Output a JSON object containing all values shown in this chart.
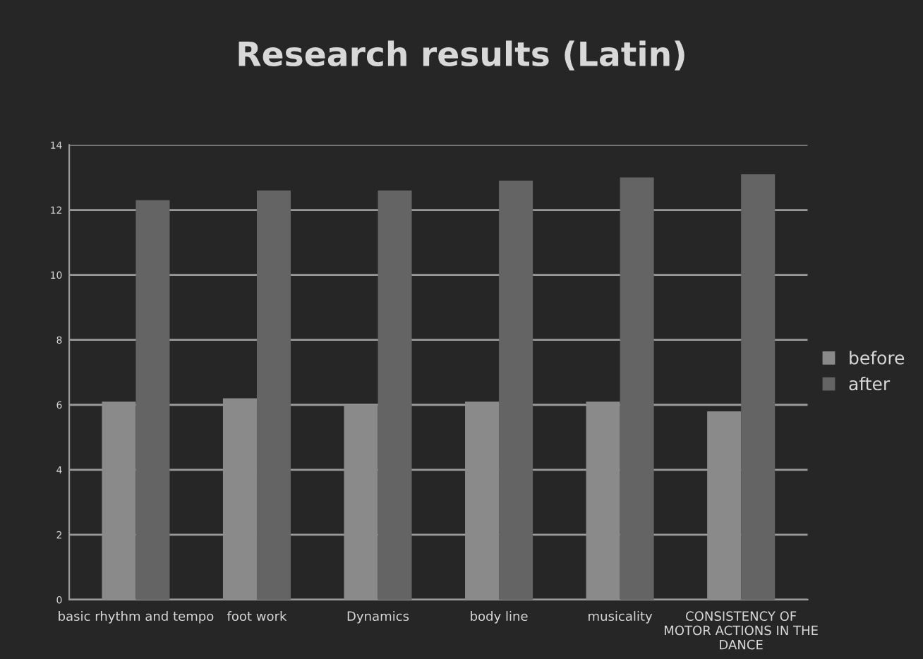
{
  "chart_data": {
    "type": "bar",
    "title": "Research results (Latin)",
    "categories": [
      "basic rhythm and tempo",
      "foot work",
      "Dynamics",
      "body line",
      "musicality",
      "CONSISTENCY OF MOTOR ACTIONS IN THE DANCE"
    ],
    "series": [
      {
        "name": "before",
        "color": "#8a8a8a",
        "values": [
          6.1,
          6.2,
          6.0,
          6.1,
          6.1,
          5.8
        ]
      },
      {
        "name": "after",
        "color": "#646464",
        "values": [
          12.3,
          12.6,
          12.6,
          12.9,
          13.0,
          13.1
        ]
      }
    ],
    "ylim": [
      0,
      14
    ],
    "yticks": [
      0,
      2,
      4,
      6,
      8,
      10,
      12,
      14
    ],
    "grid": "y",
    "legend": "right"
  }
}
